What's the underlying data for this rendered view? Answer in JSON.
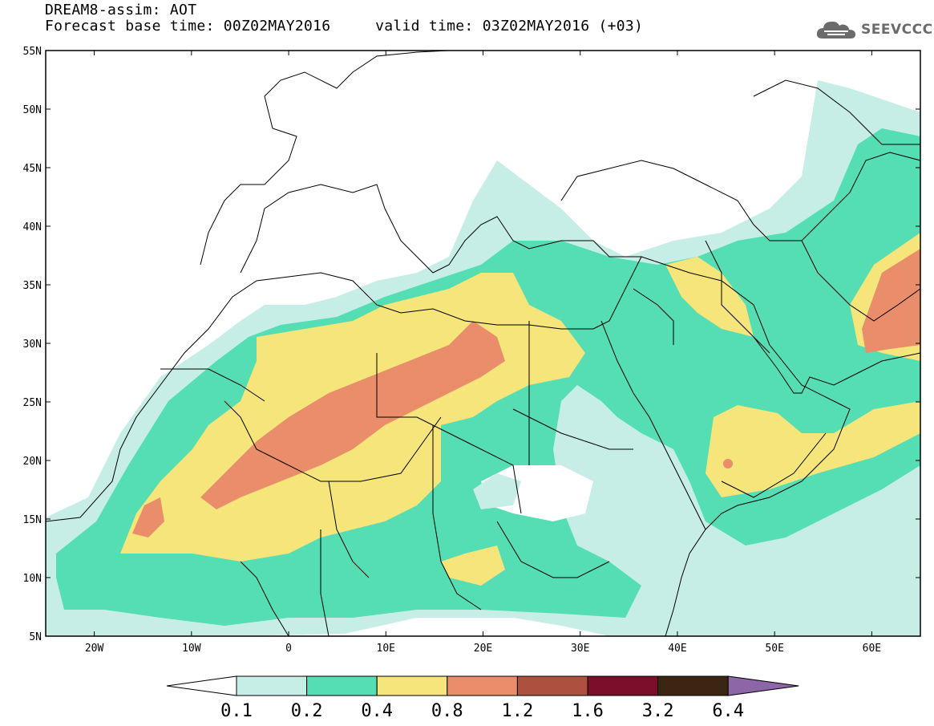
{
  "title": {
    "line1": "DREAM8-assim: AOT",
    "line2": "Forecast base time: 00Z02MAY2016     valid time: 03Z02MAY2016 (+03)"
  },
  "logo": {
    "text": "SEEVCCC",
    "icon": "cloud-icon"
  },
  "map": {
    "lat_labels": [
      "55N",
      "50N",
      "45N",
      "40N",
      "35N",
      "30N",
      "25N",
      "20N",
      "15N",
      "10N",
      "5N"
    ],
    "lon_labels": [
      "20W",
      "10W",
      "0",
      "10E",
      "20E",
      "30E",
      "40E",
      "50E",
      "60E"
    ],
    "extent": {
      "lon_min": -25,
      "lon_max": 65,
      "lat_min": 5,
      "lat_max": 55
    }
  },
  "colorbar": {
    "levels": [
      "0.1",
      "0.2",
      "0.4",
      "0.8",
      "1.2",
      "1.6",
      "3.2",
      "6.4"
    ],
    "colors": [
      "#ffffff",
      "#c6eee6",
      "#55ddb4",
      "#f5e57a",
      "#ea8d6a",
      "#ae5040",
      "#7c0e2a",
      "#3d2514",
      "#8c66a6"
    ]
  }
}
